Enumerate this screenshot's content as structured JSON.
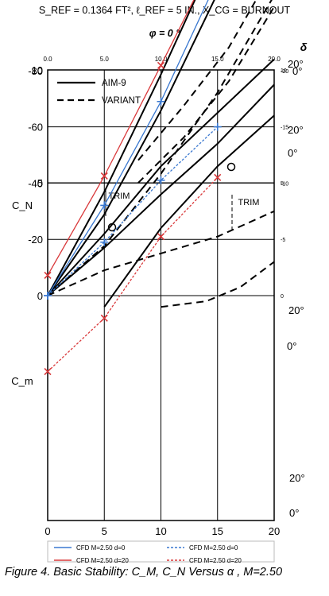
{
  "header": {
    "line1": "S_REF = 0.1364 FT², ℓ_REF = 5 IN., X_CG = BURNOUT",
    "line2": "φ = 0 °"
  },
  "caption": "Figure 4.   Basic Stability: C_M, C_N Versus α , M=2.50",
  "colors": {
    "cfd_red": "#d9383a",
    "cfd_blue": "#3a78d0",
    "curve": "#000000"
  },
  "chart_data": {
    "type": "line",
    "xlabel": "α ~ DEG",
    "xticks": [
      0,
      5,
      10,
      15,
      20
    ],
    "top_ticks": [
      "0.0",
      "5.0",
      "10.0",
      "15.0",
      "20.0"
    ],
    "left_ticks": [
      20,
      15,
      10,
      5,
      0,
      -20,
      -40,
      -60,
      -80
    ],
    "right_ticks": [
      "20",
      "15",
      "10",
      "5",
      "0",
      "-5",
      "-10",
      "-15",
      "-20"
    ],
    "ylabel_top": "C_N",
    "ylabel_bottom": "C_m",
    "delta_label": "δ",
    "delta_marks": [
      "20°",
      "0°",
      "20°",
      "0°",
      "20°",
      "0°",
      "20°",
      "0°"
    ],
    "trim_labels": [
      "TRIM",
      "TRIM"
    ],
    "legend_inner": [
      {
        "name": "AIM-9",
        "style": "solid"
      },
      {
        "name": "VARIANT",
        "style": "dashed"
      }
    ],
    "legend_bottom": [
      {
        "name": "CFD M=2.50 d=0",
        "color": "#3a78d0",
        "style": "solid"
      },
      {
        "name": "CFD M=2.50 d=0",
        "color": "#3a78d0",
        "style": "dashed"
      },
      {
        "name": "CFD M=2.50 d=20",
        "color": "#d9383a",
        "style": "solid"
      },
      {
        "name": "CFD M=2.50 d=20",
        "color": "#d9383a",
        "style": "dashed"
      }
    ],
    "grid": true,
    "series": [
      {
        "name": "CFD M=2.50 d=0",
        "color": "#3a78d0",
        "dash": "solid",
        "marker": "+",
        "x": [
          0,
          5,
          10,
          15
        ],
        "cn": [
          0,
          4.0,
          8.6,
          14.0
        ]
      },
      {
        "name": "CFD M=2.50 d=0",
        "color": "#3a78d0",
        "dash": "dashed",
        "marker": "+",
        "x": [
          0,
          5,
          10,
          15
        ],
        "cm": [
          0,
          -19,
          -41,
          -60
        ]
      },
      {
        "name": "CFD M=2.50 d=20",
        "color": "#d9383a",
        "dash": "solid",
        "marker": "x",
        "x": [
          0,
          5,
          10,
          15
        ],
        "cn": [
          0.9,
          5.3,
          10.2,
          15.2
        ]
      },
      {
        "name": "CFD M=2.50 d=20",
        "color": "#d9383a",
        "dash": "dashed",
        "marker": "x",
        "x": [
          0,
          5,
          10,
          15
        ],
        "cm": [
          27,
          8,
          -21,
          -42
        ]
      }
    ],
    "ref_curves": [
      {
        "x": [
          0,
          5,
          10,
          15,
          20
        ],
        "cn": [
          0,
          4.6,
          9.8,
          15.3,
          21.0
        ],
        "dash": "solid"
      },
      {
        "x": [
          0,
          5,
          10,
          15,
          20
        ],
        "cn": [
          0,
          3.6,
          8.2,
          13.4,
          19.4
        ],
        "dash": "solid"
      },
      {
        "x": [
          0,
          5,
          10,
          15,
          20
        ],
        "cn": [
          0,
          2.2,
          5.4,
          9.0,
          13.3
        ],
        "dash": "dashed"
      },
      {
        "x": [
          8,
          12,
          16,
          20
        ],
        "cn": [
          6.0,
          8.4,
          11.0,
          14.5
        ],
        "dash": "dashed"
      },
      {
        "x": [
          8,
          12,
          16,
          20
        ],
        "cn": [
          5.0,
          7.0,
          9.5,
          12.8
        ],
        "dash": "dashed"
      },
      {
        "x": [
          0,
          5,
          10,
          15,
          20
        ],
        "cm": [
          0,
          -17,
          -36,
          -54,
          -75
        ],
        "dash": "solid"
      },
      {
        "x": [
          0,
          5,
          10,
          15,
          20
        ],
        "cm": [
          0,
          -22,
          -46,
          -65,
          -84
        ],
        "dash": "solid"
      },
      {
        "x": [
          0,
          5,
          10,
          15,
          20
        ],
        "cm": [
          0,
          -9,
          -15,
          -21,
          -30
        ],
        "dash": "dashed"
      },
      {
        "x": [
          10,
          14,
          17,
          20
        ],
        "cm": [
          4,
          2,
          -3,
          -12
        ],
        "dash": "dashed"
      },
      {
        "x": [
          5,
          10,
          15,
          20
        ],
        "cm": [
          4,
          -24,
          -46,
          -64
        ],
        "dash": "solid"
      }
    ]
  }
}
